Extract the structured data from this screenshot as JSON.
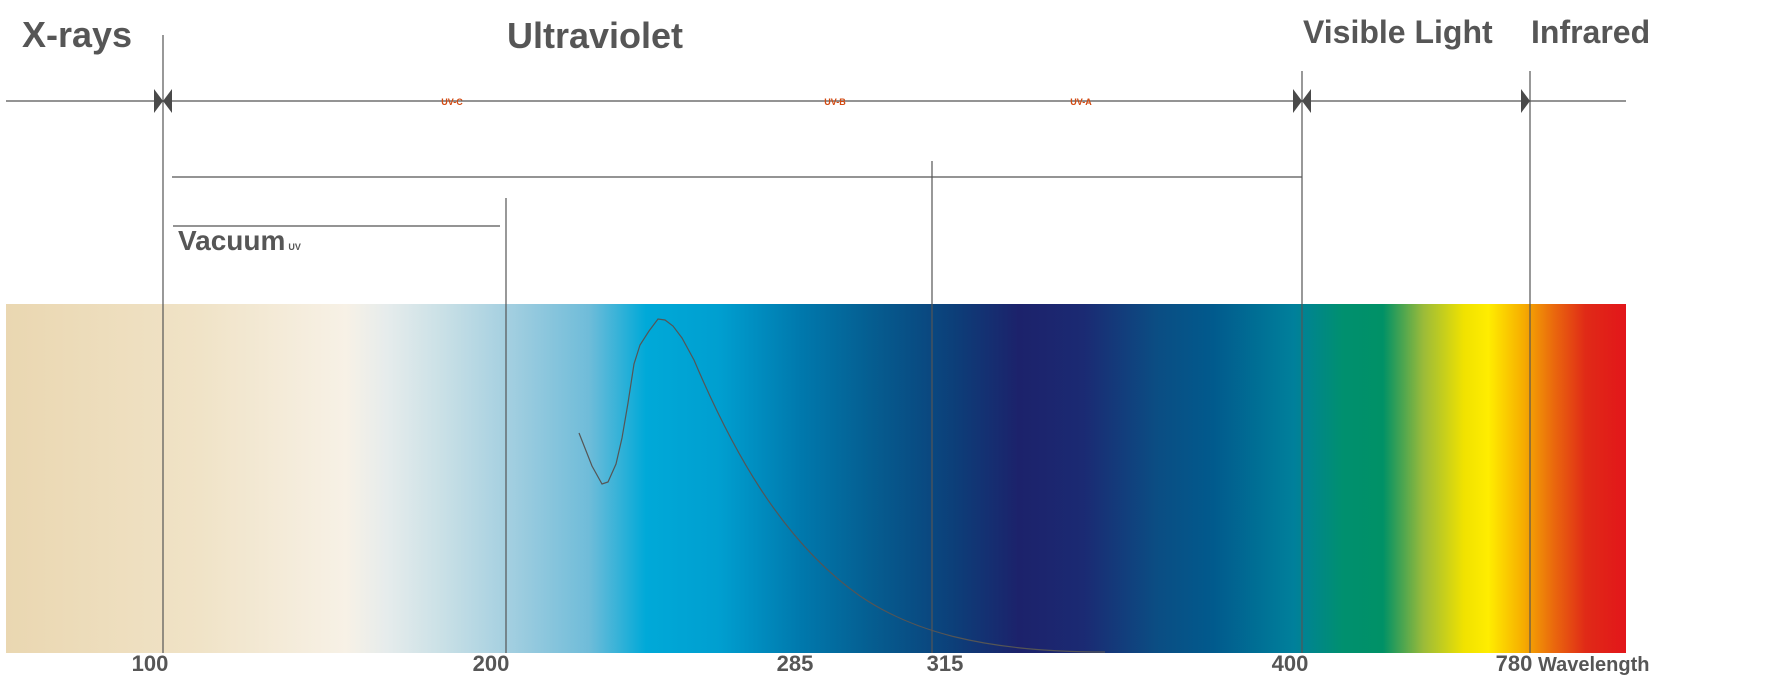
{
  "regions": {
    "xrays": "X-rays",
    "ultraviolet": "Ultraviolet",
    "visible": "Visible Light",
    "infrared": "Infrared"
  },
  "bands": {
    "uvc": "UV-C",
    "uvb": "UV-B",
    "uva": "UV-A"
  },
  "vacuum": {
    "main": "Vacuum",
    "sub": "UV"
  },
  "axis": {
    "ticks": [
      "100",
      "200",
      "285",
      "315",
      "400",
      "780"
    ],
    "label": "Wavelength"
  },
  "colors": {
    "text": "#565656",
    "band_text": "#d24a12",
    "line": "#555555"
  }
}
